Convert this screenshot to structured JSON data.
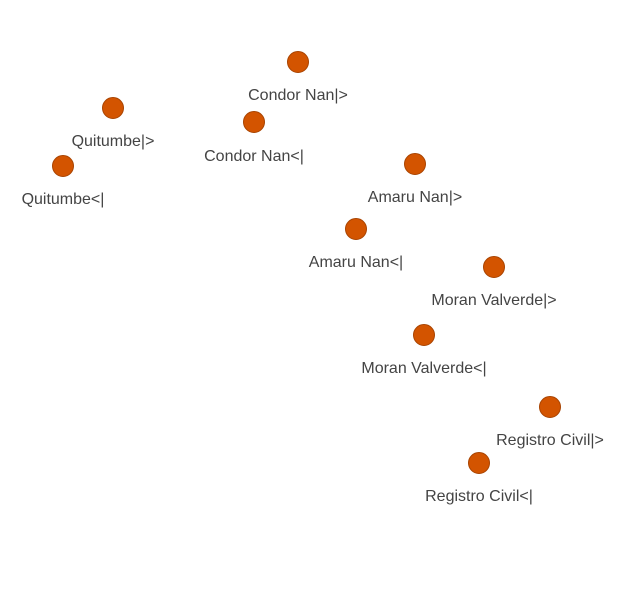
{
  "style": {
    "node_fill": "#d35400",
    "node_stroke": "#a84300",
    "label_color": "#444444"
  },
  "nodes": [
    {
      "label": "Condor Nan|>"
    },
    {
      "label": "Quitumbe|>"
    },
    {
      "label": "Condor Nan<|"
    },
    {
      "label": "Quitumbe<|"
    },
    {
      "label": "Amaru Nan|>"
    },
    {
      "label": "Amaru Nan<|"
    },
    {
      "label": "Moran Valverde|>"
    },
    {
      "label": "Moran Valverde<|"
    },
    {
      "label": "Registro Civil|>"
    },
    {
      "label": "Registro Civil<|"
    }
  ]
}
